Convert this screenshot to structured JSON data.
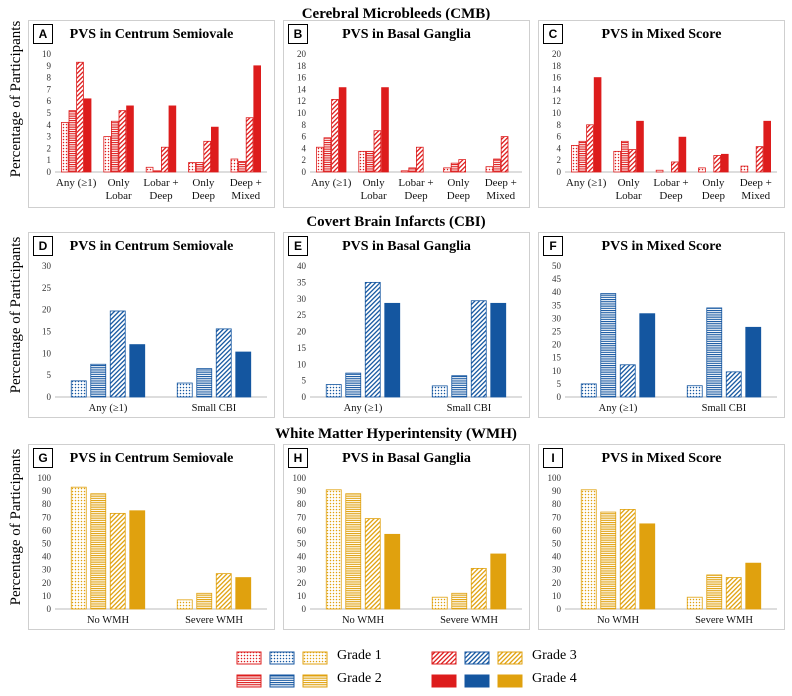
{
  "sections": [
    {
      "title": "Cerebral Microbleeds (CMB)"
    },
    {
      "title": "Covert Brain Infarcts (CBI)"
    },
    {
      "title": "White Matter Hyperintensity (WMH)"
    }
  ],
  "y_axis_label": "Percentage of Participants",
  "colors": {
    "red": "#dd1c1c",
    "blue": "#1456a0",
    "gold": "#e0a10e"
  },
  "legend": {
    "grades": [
      "Grade 1",
      "Grade 2",
      "Grade 3",
      "Grade 4"
    ],
    "patterns": [
      "dots",
      "horizontal",
      "diagonal",
      "solid"
    ]
  },
  "chart_data": [
    {
      "letter": "A",
      "type": "bar",
      "title": "PVS in Centrum Semiovale",
      "color": "red",
      "ylim": [
        0,
        10
      ],
      "yticks": [
        0,
        1,
        2,
        3,
        4,
        5,
        6,
        7,
        8,
        9,
        10
      ],
      "categories": [
        [
          "Any (≥1)"
        ],
        [
          "Only",
          "Lobar"
        ],
        [
          "Lobar +",
          "Deep"
        ],
        [
          "Only",
          "Deep"
        ],
        [
          "Deep +",
          "Mixed"
        ]
      ],
      "series": [
        {
          "name": "Grade 1",
          "values": [
            4.2,
            3.0,
            0.4,
            0.8,
            1.1
          ]
        },
        {
          "name": "Grade 2",
          "values": [
            5.2,
            4.3,
            0.1,
            0.8,
            0.9
          ]
        },
        {
          "name": "Grade 3",
          "values": [
            9.3,
            5.2,
            2.1,
            2.6,
            4.6
          ]
        },
        {
          "name": "Grade 4",
          "values": [
            6.2,
            5.6,
            5.6,
            3.8,
            9.0
          ]
        }
      ]
    },
    {
      "letter": "B",
      "type": "bar",
      "title": "PVS in Basal Ganglia",
      "color": "red",
      "ylim": [
        0,
        20
      ],
      "yticks": [
        0,
        2,
        4,
        6,
        8,
        10,
        12,
        14,
        16,
        18,
        20
      ],
      "categories": [
        [
          "Any (≥1)"
        ],
        [
          "Only",
          "Lobar"
        ],
        [
          "Lobar +",
          "Deep"
        ],
        [
          "Only",
          "Deep"
        ],
        [
          "Deep +",
          "Mixed"
        ]
      ],
      "series": [
        {
          "name": "Grade 1",
          "values": [
            4.2,
            3.5,
            0.2,
            0.7,
            0.9
          ]
        },
        {
          "name": "Grade 2",
          "values": [
            5.8,
            3.5,
            0.7,
            1.5,
            2.2
          ]
        },
        {
          "name": "Grade 3",
          "values": [
            12.3,
            7.0,
            4.2,
            2.1,
            6.0
          ]
        },
        {
          "name": "Grade 4",
          "values": [
            14.3,
            14.3,
            0,
            0,
            0
          ]
        }
      ]
    },
    {
      "letter": "C",
      "type": "bar",
      "title": "PVS in Mixed Score",
      "color": "red",
      "ylim": [
        0,
        20
      ],
      "yticks": [
        0,
        2,
        4,
        6,
        8,
        10,
        12,
        14,
        16,
        18,
        20
      ],
      "categories": [
        [
          "Any (≥1)"
        ],
        [
          "Only",
          "Lobar"
        ],
        [
          "Lobar +",
          "Deep"
        ],
        [
          "Only",
          "Deep"
        ],
        [
          "Deep +",
          "Mixed"
        ]
      ],
      "series": [
        {
          "name": "Grade 1",
          "values": [
            4.5,
            3.5,
            0.3,
            0.7,
            1.0
          ]
        },
        {
          "name": "Grade 2",
          "values": [
            5.2,
            5.2,
            0,
            0,
            0
          ]
        },
        {
          "name": "Grade 3",
          "values": [
            8.0,
            3.8,
            1.7,
            2.8,
            4.3
          ]
        },
        {
          "name": "Grade 4",
          "values": [
            16.0,
            8.6,
            5.9,
            3.0,
            8.6
          ]
        }
      ]
    },
    {
      "letter": "D",
      "type": "bar",
      "title": "PVS in Centrum Semiovale",
      "color": "blue",
      "ylim": [
        0,
        30
      ],
      "yticks": [
        0,
        5,
        10,
        15,
        20,
        25,
        30
      ],
      "categories": [
        [
          "Any (≥1)"
        ],
        [
          "Small CBI"
        ]
      ],
      "series": [
        {
          "name": "Grade 1",
          "values": [
            3.7,
            3.2
          ]
        },
        {
          "name": "Grade 2",
          "values": [
            7.5,
            6.5
          ]
        },
        {
          "name": "Grade 3",
          "values": [
            19.7,
            15.6
          ]
        },
        {
          "name": "Grade 4",
          "values": [
            12.0,
            10.3
          ]
        }
      ]
    },
    {
      "letter": "E",
      "type": "bar",
      "title": "PVS in Basal Ganglia",
      "color": "blue",
      "ylim": [
        0,
        40
      ],
      "yticks": [
        0,
        5,
        10,
        15,
        20,
        25,
        30,
        35,
        40
      ],
      "categories": [
        [
          "Any (≥1)"
        ],
        [
          "Small CBI"
        ]
      ],
      "series": [
        {
          "name": "Grade 1",
          "values": [
            3.8,
            3.4
          ]
        },
        {
          "name": "Grade 2",
          "values": [
            7.3,
            6.5
          ]
        },
        {
          "name": "Grade 3",
          "values": [
            35.0,
            29.4
          ]
        },
        {
          "name": "Grade 4",
          "values": [
            28.6,
            28.6
          ]
        }
      ]
    },
    {
      "letter": "F",
      "type": "bar",
      "title": "PVS in Mixed Score",
      "color": "blue",
      "ylim": [
        0,
        50
      ],
      "yticks": [
        0,
        5,
        10,
        15,
        20,
        25,
        30,
        35,
        40,
        45,
        50
      ],
      "categories": [
        [
          "Any (≥1)"
        ],
        [
          "Small CBI"
        ]
      ],
      "series": [
        {
          "name": "Grade 1",
          "values": [
            5.0,
            4.3
          ]
        },
        {
          "name": "Grade 2",
          "values": [
            39.5,
            34.0
          ]
        },
        {
          "name": "Grade 3",
          "values": [
            12.3,
            9.6
          ]
        },
        {
          "name": "Grade 4",
          "values": [
            31.8,
            26.6
          ]
        }
      ]
    },
    {
      "letter": "G",
      "type": "bar",
      "title": "PVS in Centrum Semiovale",
      "color": "gold",
      "ylim": [
        0,
        100
      ],
      "yticks": [
        0,
        10,
        20,
        30,
        40,
        50,
        60,
        70,
        80,
        90,
        100
      ],
      "categories": [
        [
          "No WMH"
        ],
        [
          "Severe WMH"
        ]
      ],
      "series": [
        {
          "name": "Grade 1",
          "values": [
            93,
            7
          ]
        },
        {
          "name": "Grade 2",
          "values": [
            88,
            12
          ]
        },
        {
          "name": "Grade 3",
          "values": [
            73,
            27
          ]
        },
        {
          "name": "Grade 4",
          "values": [
            75,
            24
          ]
        }
      ]
    },
    {
      "letter": "H",
      "type": "bar",
      "title": "PVS in Basal Ganglia",
      "color": "gold",
      "ylim": [
        0,
        100
      ],
      "yticks": [
        0,
        10,
        20,
        30,
        40,
        50,
        60,
        70,
        80,
        90,
        100
      ],
      "categories": [
        [
          "No WMH"
        ],
        [
          "Severe WMH"
        ]
      ],
      "series": [
        {
          "name": "Grade 1",
          "values": [
            91,
            9
          ]
        },
        {
          "name": "Grade 2",
          "values": [
            88,
            12
          ]
        },
        {
          "name": "Grade 3",
          "values": [
            69,
            31
          ]
        },
        {
          "name": "Grade 4",
          "values": [
            57,
            42
          ]
        }
      ]
    },
    {
      "letter": "I",
      "type": "bar",
      "title": "PVS in Mixed Score",
      "color": "gold",
      "ylim": [
        0,
        100
      ],
      "yticks": [
        0,
        10,
        20,
        30,
        40,
        50,
        60,
        70,
        80,
        90,
        100
      ],
      "categories": [
        [
          "No WMH"
        ],
        [
          "Severe WMH"
        ]
      ],
      "series": [
        {
          "name": "Grade 1",
          "values": [
            91,
            9
          ]
        },
        {
          "name": "Grade 2",
          "values": [
            74,
            26
          ]
        },
        {
          "name": "Grade 3",
          "values": [
            76,
            24
          ]
        },
        {
          "name": "Grade 4",
          "values": [
            65,
            35
          ]
        }
      ]
    }
  ]
}
